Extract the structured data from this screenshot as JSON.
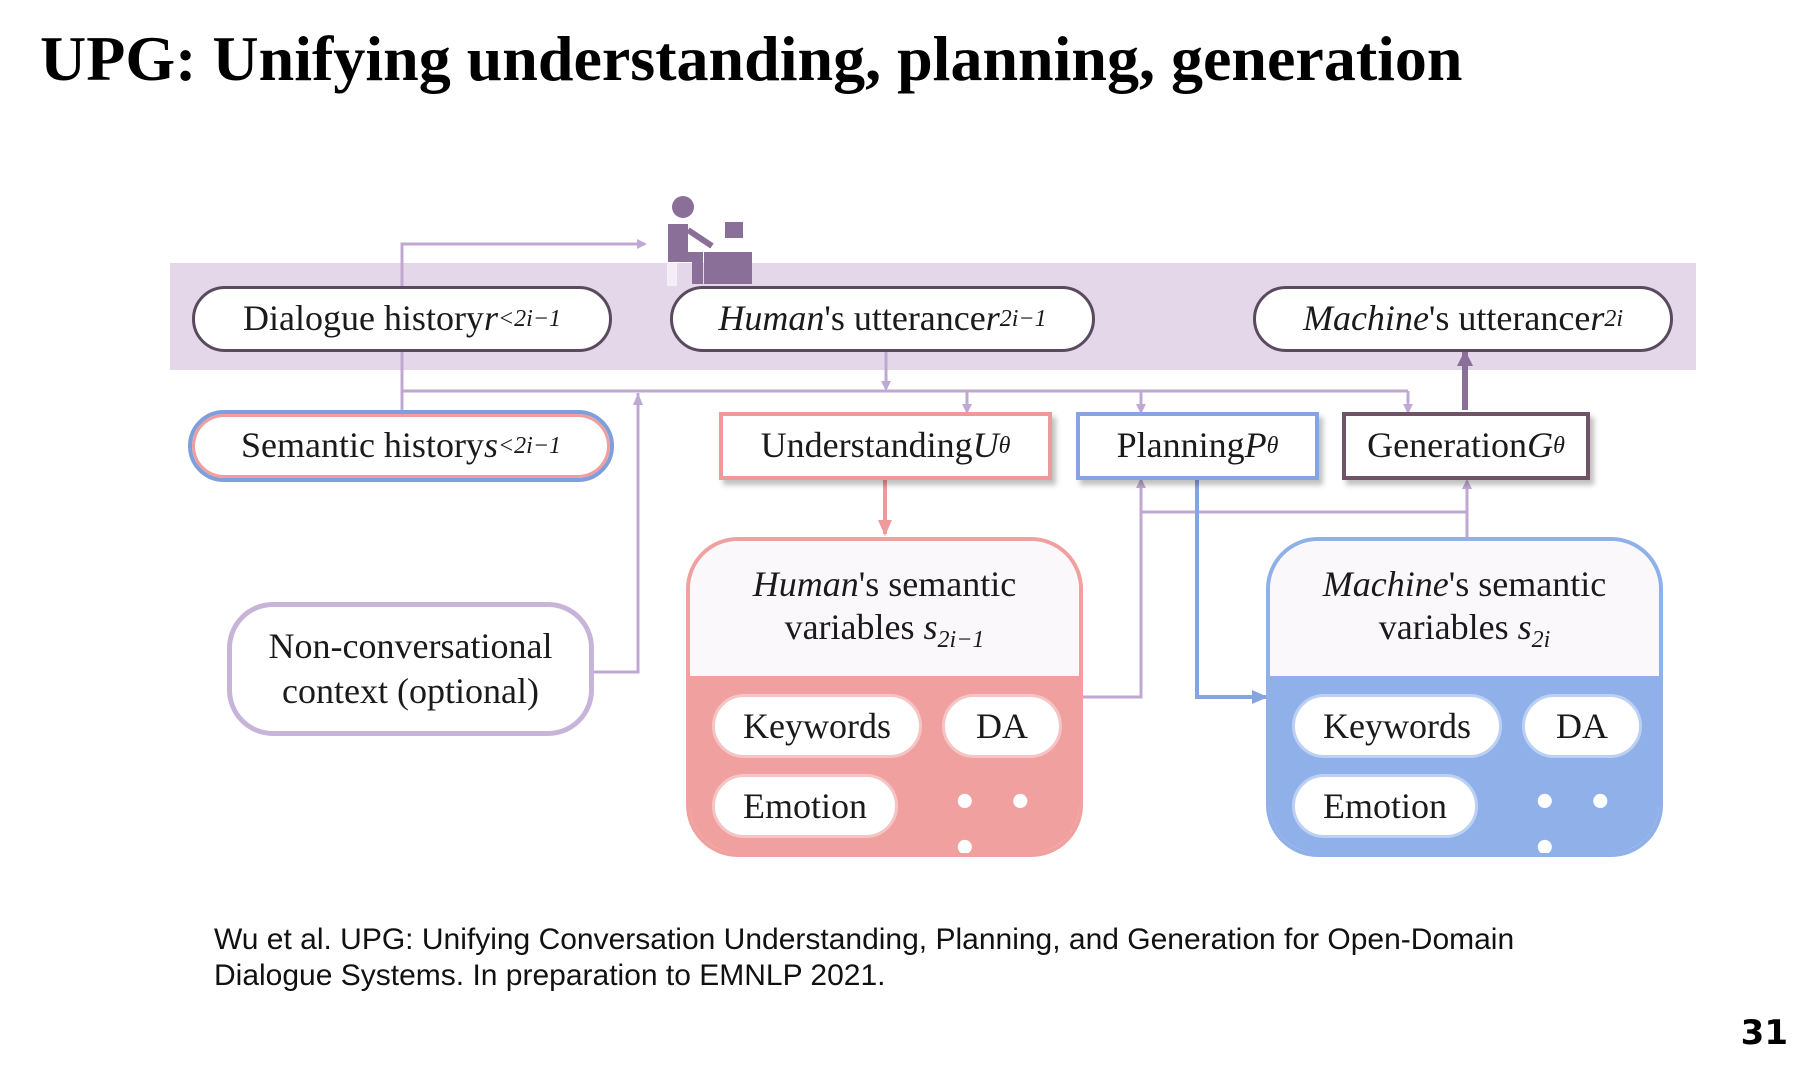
{
  "slide": {
    "title": "UPG: Unifying understanding, planning, generation",
    "page_number": "31",
    "citation_line1": "Wu et al. UPG: Unifying Conversation Understanding, Planning, and Generation for Open-Domain",
    "citation_line2": "Dialogue Systems. In preparation to EMNLP 2021."
  },
  "diagram": {
    "icon": "person-at-computer-icon",
    "dialogue_history": {
      "label": "Dialogue history ",
      "var": "r",
      "sub": "<2i−1"
    },
    "human_utterance": {
      "label_italic": "Human",
      "label": "'s utterance ",
      "var": "r",
      "sub": "2i−1"
    },
    "machine_utterance": {
      "label_italic": "Machine",
      "label": "'s utterance ",
      "var": "r",
      "sub": "2i"
    },
    "semantic_history": {
      "label": "Semantic history ",
      "var": "s",
      "sub": "<2i−1"
    },
    "understanding": {
      "label": "Understanding ",
      "var": "U",
      "sub": "θ"
    },
    "planning": {
      "label": "Planning ",
      "var": "P",
      "sub": "θ"
    },
    "generation": {
      "label": "Generation",
      "var": "G",
      "sub": "θ"
    },
    "context": {
      "line1": "Non-conversational",
      "line2": "context (optional)"
    },
    "human_semantic": {
      "line1_italic": "Human",
      "line1": "'s semantic",
      "line2": "variables ",
      "var": "s",
      "sub": "2i−1",
      "chips": [
        "Keywords",
        "DA",
        "Emotion"
      ],
      "more": "• • •"
    },
    "machine_semantic": {
      "line1_italic": "Machine",
      "line1": "'s semantic",
      "line2": "variables ",
      "var": "s",
      "sub": "2i",
      "chips": [
        "Keywords",
        "DA",
        "Emotion"
      ],
      "more": "• • •"
    },
    "colors": {
      "band": "#e3d7e9",
      "connector": "#bfa9d3",
      "understanding": "#ee9a9a",
      "planning": "#86a4df",
      "generation": "#6e5466"
    }
  }
}
